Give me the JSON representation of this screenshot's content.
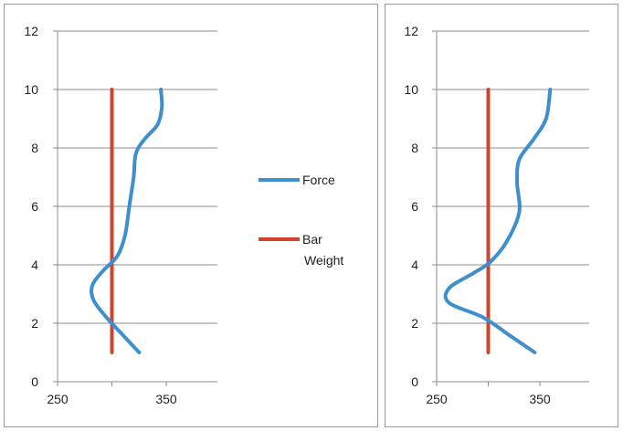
{
  "chart_data": [
    {
      "type": "line",
      "title": "",
      "xlabel": "",
      "ylabel": "",
      "xlim": [
        250,
        400
      ],
      "ylim": [
        0,
        12
      ],
      "x_ticks": [
        "250",
        "350"
      ],
      "y_ticks": [
        "0",
        "2",
        "4",
        "6",
        "8",
        "10",
        "12"
      ],
      "grid": "horizontal",
      "legend": "right",
      "series": [
        {
          "name": "Force",
          "color": "#3f8fce",
          "points": [
            [
              325,
              1
            ],
            [
              310,
              1.6
            ],
            [
              295,
              2.2
            ],
            [
              283,
              2.8
            ],
            [
              282,
              3.3
            ],
            [
              292,
              3.8
            ],
            [
              305,
              4.3
            ],
            [
              312,
              5.0
            ],
            [
              316,
              6.0
            ],
            [
              320,
              7.0
            ],
            [
              322,
              7.8
            ],
            [
              330,
              8.3
            ],
            [
              342,
              8.8
            ],
            [
              346,
              9.4
            ],
            [
              345,
              10
            ]
          ]
        },
        {
          "name": "Bar Weight",
          "color": "#d0442c",
          "points": [
            [
              300,
              1
            ],
            [
              300,
              10
            ]
          ]
        }
      ]
    },
    {
      "type": "line",
      "title": "",
      "xlabel": "",
      "ylabel": "",
      "xlim": [
        250,
        400
      ],
      "ylim": [
        0,
        12
      ],
      "x_ticks": [
        "250",
        "350"
      ],
      "y_ticks": [
        "0",
        "2",
        "4",
        "6",
        "8",
        "10",
        "12"
      ],
      "grid": "horizontal",
      "legend": "none",
      "series": [
        {
          "color": "#3f8fce",
          "points": [
            [
              345,
              1
            ],
            [
              320,
              1.6
            ],
            [
              295,
              2.2
            ],
            [
              262,
              2.7
            ],
            [
              262,
              3.2
            ],
            [
              285,
              3.7
            ],
            [
              302,
              4.1
            ],
            [
              318,
              4.8
            ],
            [
              330,
              5.8
            ],
            [
              328,
              6.8
            ],
            [
              330,
              7.6
            ],
            [
              344,
              8.3
            ],
            [
              356,
              9.0
            ],
            [
              360,
              10
            ]
          ]
        },
        {
          "color": "#d0442c",
          "points": [
            [
              300,
              1
            ],
            [
              300,
              10
            ]
          ]
        }
      ]
    }
  ]
}
